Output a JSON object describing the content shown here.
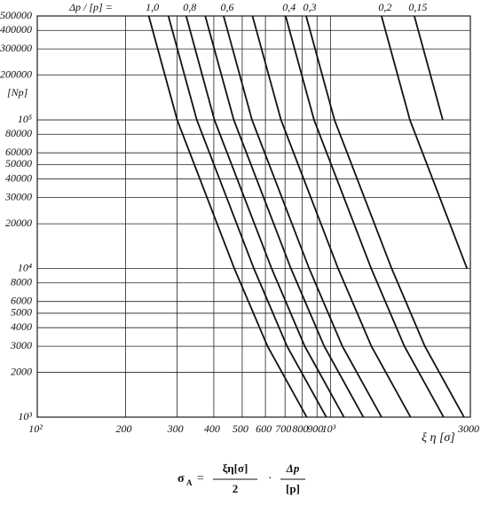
{
  "chart_data": {
    "type": "line",
    "legend_prefix": "Δp / [p] =",
    "y_axis_label": "[Np]",
    "x_axis_label": "ξ η [σ]",
    "log_x": true,
    "log_y": true,
    "grid": true,
    "color": "#111111",
    "xlim": [
      100,
      3000
    ],
    "ylim": [
      1000,
      500000
    ],
    "xticks": [
      {
        "value": 100,
        "label": "10²"
      },
      200,
      300,
      400,
      500,
      600,
      700,
      800,
      900,
      {
        "value": 1000,
        "label": "10³"
      },
      3000
    ],
    "yticks": [
      {
        "value": 1000,
        "label": "10³"
      },
      2000,
      3000,
      4000,
      5000,
      6000,
      8000,
      {
        "value": 10000,
        "label": "10⁴"
      },
      20000,
      30000,
      40000,
      50000,
      60000,
      80000,
      {
        "value": 100000,
        "label": "10⁵"
      },
      200000,
      300000,
      400000,
      500000
    ],
    "series": [
      {
        "name": "1,0",
        "x": [
          240,
          300,
          470,
          610,
          830
        ],
        "values": [
          500000,
          100000,
          10000,
          3000,
          1000
        ]
      },
      {
        "x": [
          280,
          350,
          548,
          711,
          968
        ],
        "values": [
          500000,
          100000,
          10000,
          3000,
          1000
        ]
      },
      {
        "name": "0,8",
        "x": [
          322,
          402,
          630,
          817,
          1112
        ],
        "values": [
          500000,
          100000,
          10000,
          3000,
          1000
        ]
      },
      {
        "x": [
          374,
          468,
          733,
          952,
          1295
        ],
        "values": [
          500000,
          100000,
          10000,
          3000,
          1000
        ]
      },
      {
        "name": "0,6",
        "x": [
          432,
          540,
          846,
          1098,
          1494
        ],
        "values": [
          500000,
          100000,
          10000,
          3000,
          1000
        ]
      },
      {
        "x": [
          542,
          678,
          1062,
          1379,
          1876
        ],
        "values": [
          500000,
          100000,
          10000,
          3000,
          1000
        ]
      },
      {
        "name": "0,4",
        "x": [
          703,
          879,
          1377,
          1787,
          2432
        ],
        "values": [
          500000,
          100000,
          10000,
          3000,
          1000
        ]
      },
      {
        "name": "0,3",
        "x": [
          826,
          1032,
          1617,
          2098,
          2855
        ],
        "values": [
          500000,
          100000,
          10000,
          3000,
          1000
        ]
      },
      {
        "name": "0,2",
        "x": [
          1493,
          1866,
          2923
        ],
        "values": [
          500000,
          100000,
          10000
        ]
      },
      {
        "name": "0,15",
        "x": [
          1932,
          2415
        ],
        "values": [
          500000,
          100000
        ]
      }
    ],
    "formula": {
      "lhs": "σ",
      "lhs_sub": "A",
      "eq": "=",
      "num1": "ξη[σ]",
      "den1": "2",
      "op": "·",
      "num2": "Δp",
      "den2": "[p]"
    }
  }
}
